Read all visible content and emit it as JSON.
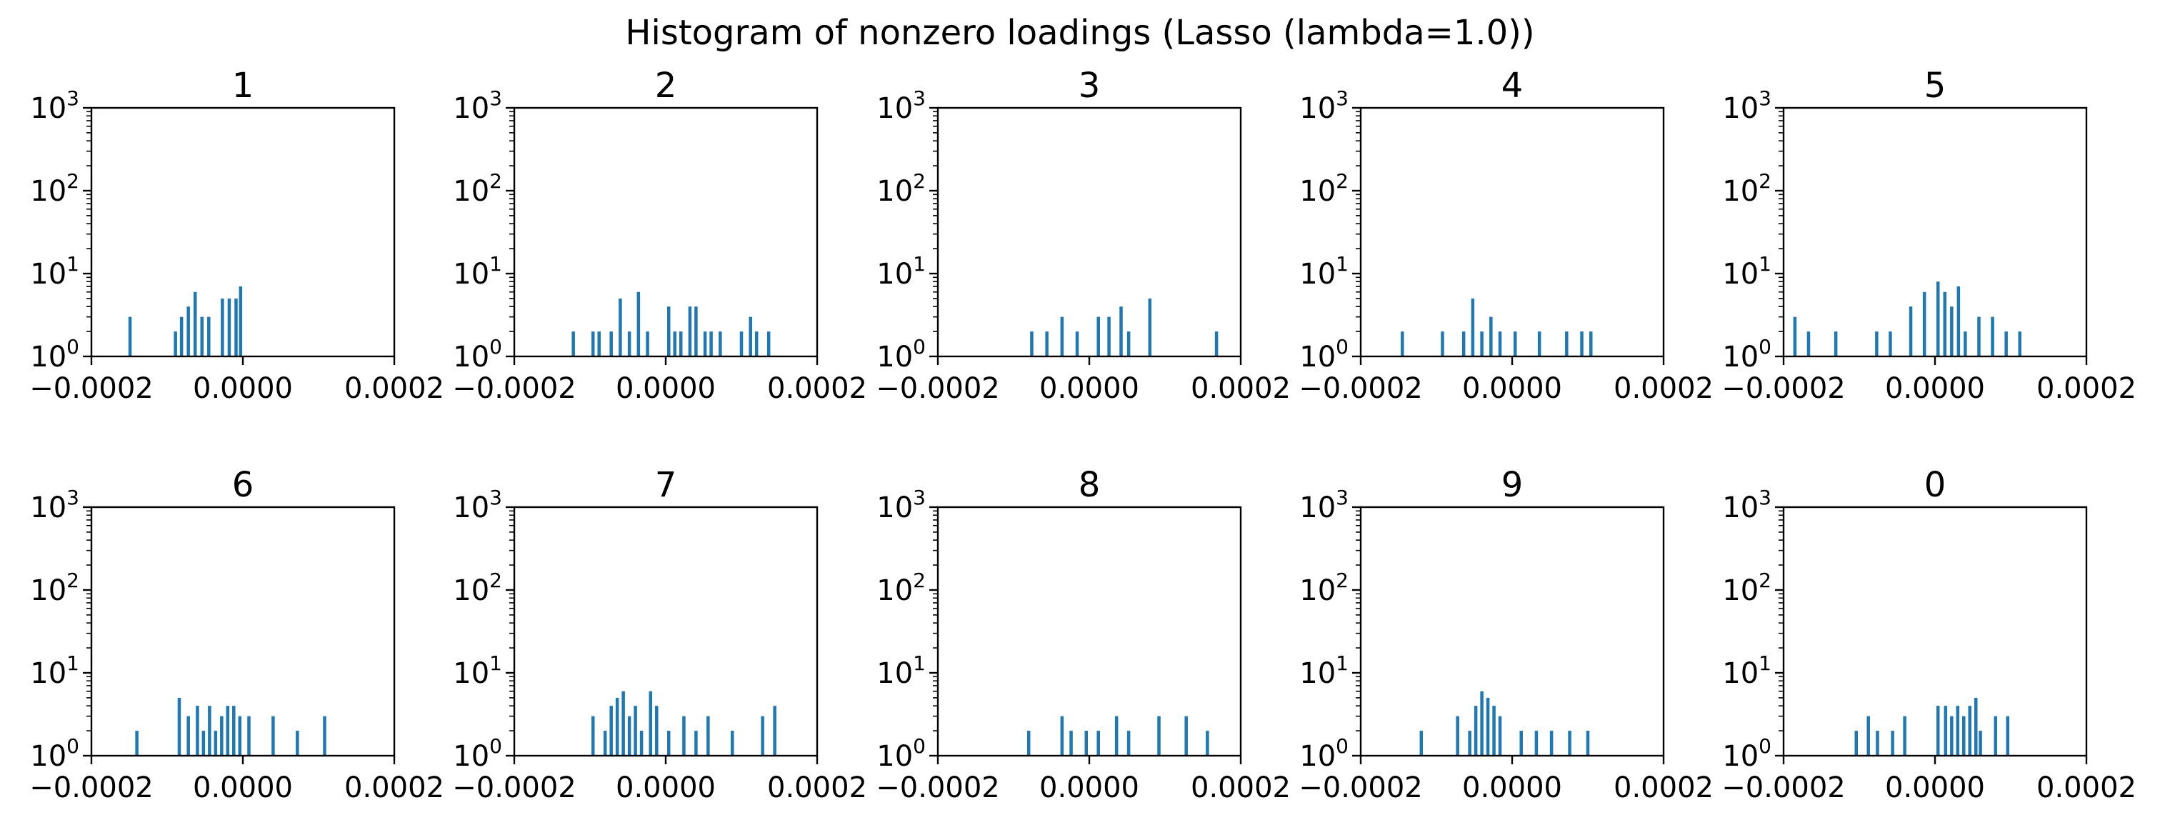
{
  "figure": {
    "suptitle": "Histogram of nonzero loadings (Lasso (lambda=1.0))",
    "bar_color": "#1f77b4",
    "axis_color": "#000000"
  },
  "chart_data": [
    {
      "type": "bar",
      "title": "1",
      "xlim": [
        -0.0002,
        0.0002
      ],
      "ylim": [
        1,
        1000
      ],
      "yscale": "log",
      "xticks": [
        "−0.0002",
        "0.0000",
        "0.0002"
      ],
      "yticks": [
        "10^0",
        "10^1",
        "10^2",
        "10^3"
      ],
      "bars": [
        [
          -0.000149,
          3
        ],
        [
          -8.9e-05,
          2
        ],
        [
          -8.1e-05,
          3
        ],
        [
          -7.2e-05,
          4
        ],
        [
          -6.3e-05,
          6
        ],
        [
          -5.4e-05,
          3
        ],
        [
          -4.5e-05,
          3
        ],
        [
          -2.7e-05,
          5
        ],
        [
          -1.8e-05,
          5
        ],
        [
          -9e-06,
          5
        ],
        [
          -3e-06,
          7
        ]
      ]
    },
    {
      "type": "bar",
      "title": "2",
      "xlim": [
        -0.0002,
        0.0002
      ],
      "ylim": [
        1,
        1000
      ],
      "yscale": "log",
      "xticks": [
        "−0.0002",
        "0.0000",
        "0.0002"
      ],
      "yticks": [
        "10^0",
        "10^1",
        "10^2",
        "10^3"
      ],
      "bars": [
        [
          -0.000122,
          2
        ],
        [
          -9.6e-05,
          2
        ],
        [
          -8.8e-05,
          2
        ],
        [
          -7.2e-05,
          2
        ],
        [
          -6e-05,
          5
        ],
        [
          -4.8e-05,
          2
        ],
        [
          -3.6e-05,
          6
        ],
        [
          -2.4e-05,
          2
        ],
        [
          4e-06,
          4
        ],
        [
          1.2e-05,
          2
        ],
        [
          2e-05,
          2
        ],
        [
          3.2e-05,
          4
        ],
        [
          4e-05,
          4
        ],
        [
          5.2e-05,
          2
        ],
        [
          6e-05,
          2
        ],
        [
          7.2e-05,
          2
        ],
        [
          0.0001,
          2
        ],
        [
          0.000112,
          3
        ],
        [
          0.00012,
          2
        ],
        [
          0.000136,
          2
        ]
      ]
    },
    {
      "type": "bar",
      "title": "3",
      "xlim": [
        -0.0002,
        0.0002
      ],
      "ylim": [
        1,
        1000
      ],
      "yscale": "log",
      "xticks": [
        "−0.0002",
        "0.0000",
        "0.0002"
      ],
      "yticks": [
        "10^0",
        "10^1",
        "10^2",
        "10^3"
      ],
      "bars": [
        [
          -7.6e-05,
          2
        ],
        [
          -5.6e-05,
          2
        ],
        [
          -3.6e-05,
          3
        ],
        [
          -1.6e-05,
          2
        ],
        [
          1.2e-05,
          3
        ],
        [
          2.6e-05,
          3
        ],
        [
          4.2e-05,
          4
        ],
        [
          5.2e-05,
          2
        ],
        [
          8e-05,
          5
        ],
        [
          0.000168,
          2
        ]
      ]
    },
    {
      "type": "bar",
      "title": "4",
      "xlim": [
        -0.0002,
        0.0002
      ],
      "ylim": [
        1,
        1000
      ],
      "yscale": "log",
      "xticks": [
        "−0.0002",
        "0.0000",
        "0.0002"
      ],
      "yticks": [
        "10^0",
        "10^1",
        "10^2",
        "10^3"
      ],
      "bars": [
        [
          -0.000145,
          2
        ],
        [
          -9.2e-05,
          2
        ],
        [
          -6.4e-05,
          2
        ],
        [
          -5.2e-05,
          5
        ],
        [
          -4e-05,
          2
        ],
        [
          -2.8e-05,
          3
        ],
        [
          -1.6e-05,
          2
        ],
        [
          4e-06,
          2
        ],
        [
          3.6e-05,
          2
        ],
        [
          7.2e-05,
          2
        ],
        [
          9.2e-05,
          2
        ],
        [
          0.000104,
          2
        ]
      ]
    },
    {
      "type": "bar",
      "title": "5",
      "xlim": [
        -0.0002,
        0.0002
      ],
      "ylim": [
        1,
        1000
      ],
      "yscale": "log",
      "xticks": [
        "−0.0002",
        "0.0000",
        "0.0002"
      ],
      "yticks": [
        "10^0",
        "10^1",
        "10^2",
        "10^3"
      ],
      "bars": [
        [
          -0.000185,
          3
        ],
        [
          -0.000167,
          2
        ],
        [
          -0.000131,
          2
        ],
        [
          -7.7e-05,
          2
        ],
        [
          -5.9e-05,
          2
        ],
        [
          -3.2e-05,
          4
        ],
        [
          -1.4e-05,
          6
        ],
        [
          4e-06,
          8
        ],
        [
          1.3e-05,
          6
        ],
        [
          2.2e-05,
          4
        ],
        [
          3.1e-05,
          7
        ],
        [
          4e-05,
          2
        ],
        [
          5.8e-05,
          3
        ],
        [
          7.6e-05,
          3
        ],
        [
          9.4e-05,
          2
        ],
        [
          0.000112,
          2
        ]
      ]
    },
    {
      "type": "bar",
      "title": "6",
      "xlim": [
        -0.0002,
        0.0002
      ],
      "ylim": [
        1,
        1000
      ],
      "yscale": "log",
      "xticks": [
        "−0.0002",
        "0.0000",
        "0.0002"
      ],
      "yticks": [
        "10^0",
        "10^1",
        "10^2",
        "10^3"
      ],
      "bars": [
        [
          -0.00014,
          2
        ],
        [
          -8.4e-05,
          5
        ],
        [
          -7.2e-05,
          3
        ],
        [
          -6e-05,
          4
        ],
        [
          -5.2e-05,
          2
        ],
        [
          -4.4e-05,
          4
        ],
        [
          -3.6e-05,
          2
        ],
        [
          -2.8e-05,
          3
        ],
        [
          -2e-05,
          4
        ],
        [
          -1.2e-05,
          4
        ],
        [
          -4e-06,
          3
        ],
        [
          8e-06,
          3
        ],
        [
          4e-05,
          3
        ],
        [
          7.2e-05,
          2
        ],
        [
          0.000108,
          3
        ]
      ]
    },
    {
      "type": "bar",
      "title": "7",
      "xlim": [
        -0.0002,
        0.0002
      ],
      "ylim": [
        1,
        1000
      ],
      "yscale": "log",
      "xticks": [
        "−0.0002",
        "0.0000",
        "0.0002"
      ],
      "yticks": [
        "10^0",
        "10^1",
        "10^2",
        "10^3"
      ],
      "bars": [
        [
          -9.6e-05,
          3
        ],
        [
          -8e-05,
          2
        ],
        [
          -7.2e-05,
          4
        ],
        [
          -6.4e-05,
          5
        ],
        [
          -5.6e-05,
          6
        ],
        [
          -4.8e-05,
          3
        ],
        [
          -4e-05,
          4
        ],
        [
          -3.2e-05,
          2
        ],
        [
          -2e-05,
          6
        ],
        [
          -1.2e-05,
          4
        ],
        [
          4e-06,
          2
        ],
        [
          2.4e-05,
          3
        ],
        [
          4e-05,
          2
        ],
        [
          5.6e-05,
          3
        ],
        [
          8.8e-05,
          2
        ],
        [
          0.000128,
          3
        ],
        [
          0.000144,
          4
        ]
      ]
    },
    {
      "type": "bar",
      "title": "8",
      "xlim": [
        -0.0002,
        0.0002
      ],
      "ylim": [
        1,
        1000
      ],
      "yscale": "log",
      "xticks": [
        "−0.0002",
        "0.0000",
        "0.0002"
      ],
      "yticks": [
        "10^0",
        "10^1",
        "10^2",
        "10^3"
      ],
      "bars": [
        [
          -8e-05,
          2
        ],
        [
          -3.6e-05,
          3
        ],
        [
          -2.4e-05,
          2
        ],
        [
          -4e-06,
          2
        ],
        [
          1.2e-05,
          2
        ],
        [
          3.6e-05,
          3
        ],
        [
          5.2e-05,
          2
        ],
        [
          9.2e-05,
          3
        ],
        [
          0.000128,
          3
        ],
        [
          0.000156,
          2
        ]
      ]
    },
    {
      "type": "bar",
      "title": "9",
      "xlim": [
        -0.0002,
        0.0002
      ],
      "ylim": [
        1,
        1000
      ],
      "yscale": "log",
      "xticks": [
        "−0.0002",
        "0.0000",
        "0.0002"
      ],
      "yticks": [
        "10^0",
        "10^1",
        "10^2",
        "10^3"
      ],
      "bars": [
        [
          -0.00012,
          2
        ],
        [
          -7.2e-05,
          3
        ],
        [
          -5.6e-05,
          2
        ],
        [
          -4.8e-05,
          4
        ],
        [
          -4e-05,
          6
        ],
        [
          -3.2e-05,
          5
        ],
        [
          -2.4e-05,
          4
        ],
        [
          -1.6e-05,
          3
        ],
        [
          1.2e-05,
          2
        ],
        [
          3.2e-05,
          2
        ],
        [
          5.2e-05,
          2
        ],
        [
          7.6e-05,
          2
        ],
        [
          0.0001,
          2
        ]
      ]
    },
    {
      "type": "bar",
      "title": "0",
      "xlim": [
        -0.0002,
        0.0002
      ],
      "ylim": [
        1,
        1000
      ],
      "yscale": "log",
      "xticks": [
        "−0.0002",
        "0.0000",
        "0.0002"
      ],
      "yticks": [
        "10^0",
        "10^1",
        "10^2",
        "10^3"
      ],
      "bars": [
        [
          -0.000104,
          2
        ],
        [
          -8.8e-05,
          3
        ],
        [
          -7.6e-05,
          2
        ],
        [
          -5.6e-05,
          2
        ],
        [
          -4e-05,
          3
        ],
        [
          4e-06,
          4
        ],
        [
          1.4e-05,
          4
        ],
        [
          2.2e-05,
          3
        ],
        [
          3e-05,
          4
        ],
        [
          3.8e-05,
          3
        ],
        [
          4.6e-05,
          4
        ],
        [
          5.4e-05,
          5
        ],
        [
          6e-05,
          2
        ],
        [
          8e-05,
          3
        ],
        [
          9.6e-05,
          3
        ]
      ]
    }
  ]
}
